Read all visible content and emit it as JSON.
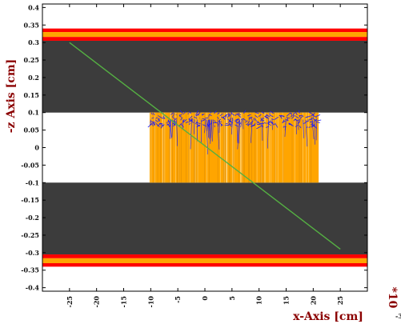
{
  "chart_data": {
    "type": "scatter",
    "title": "",
    "xlabel": "x-Axis [cm]",
    "ylabel": "-z Axis [cm]",
    "x_multiplier": "*10",
    "x_multiplier_exponent": "-3",
    "xlim": [
      -30,
      30
    ],
    "ylim": [
      -0.41,
      0.41
    ],
    "x_ticks": [
      -25,
      -20,
      -15,
      -10,
      -5,
      0,
      5,
      10,
      15,
      20,
      25
    ],
    "y_ticks": [
      0.4,
      0.35,
      0.3,
      0.25,
      0.2,
      0.15,
      0.1,
      0.05,
      0,
      -0.05,
      -0.1,
      -0.15,
      -0.2,
      -0.25,
      -0.3,
      -0.35,
      -0.4
    ],
    "bands": [
      {
        "name": "top-red-outer",
        "y0": 0.33,
        "y1": 0.34,
        "color": "#ff0000"
      },
      {
        "name": "top-orange",
        "y0": 0.316,
        "y1": 0.33,
        "color": "#ffa500"
      },
      {
        "name": "top-red-inner",
        "y0": 0.305,
        "y1": 0.316,
        "color": "#ff0000"
      },
      {
        "name": "top-gray",
        "y0": 0.1,
        "y1": 0.305,
        "color": "#3c3c3c"
      },
      {
        "name": "bottom-gray",
        "y0": -0.305,
        "y1": -0.1,
        "color": "#3c3c3c"
      },
      {
        "name": "bottom-red-inner",
        "y0": -0.316,
        "y1": -0.305,
        "color": "#ff0000"
      },
      {
        "name": "bottom-orange",
        "y0": -0.33,
        "y1": -0.316,
        "color": "#ffa500"
      },
      {
        "name": "bottom-red-outer",
        "y0": -0.34,
        "y1": -0.33,
        "color": "#ff0000"
      }
    ],
    "energy_deposit_region": {
      "x0": -10.2,
      "x1": 21,
      "y_top": 0.1,
      "y_bottom": -0.1,
      "color": "#ffa500"
    },
    "track_line": {
      "x": [
        -25,
        25
      ],
      "y": [
        0.3,
        -0.29
      ],
      "color": "#55b043"
    },
    "scatter_cloud": {
      "x_range": [
        -10,
        21
      ],
      "y_range": [
        0.06,
        0.1
      ],
      "color": "#1a1aff"
    },
    "colors": {
      "frame": "#000000",
      "gray": "#3c3c3c",
      "red": "#ff0000",
      "orange": "#ffa500",
      "blue": "#1a1aff",
      "green": "#55b043",
      "label": "#8b0000"
    }
  }
}
